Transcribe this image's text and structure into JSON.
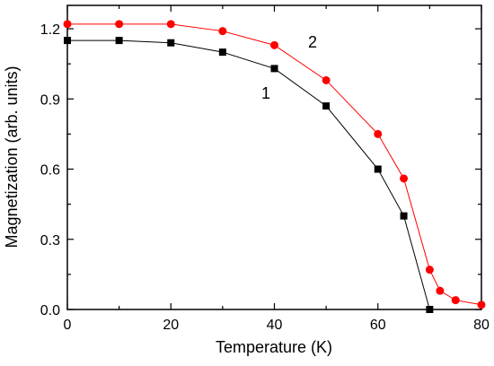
{
  "chart_data": {
    "type": "line",
    "xlabel": "Temperature (K)",
    "ylabel": "Magnetization (arb. units)",
    "xlim": [
      0,
      80
    ],
    "ylim": [
      0,
      1.3
    ],
    "xticks": [
      "0",
      "20",
      "40",
      "60",
      "80"
    ],
    "yticks": [
      "0.0",
      "0.3",
      "0.6",
      "0.9",
      "1.2"
    ],
    "grid": false,
    "series": [
      {
        "name": "1",
        "marker": "square",
        "color": "#000000",
        "points": [
          [
            0,
            1.15
          ],
          [
            10,
            1.15
          ],
          [
            20,
            1.14
          ],
          [
            30,
            1.1
          ],
          [
            40,
            1.03
          ],
          [
            50,
            0.87
          ],
          [
            60,
            0.6
          ],
          [
            65,
            0.4
          ],
          [
            70,
            0.0
          ]
        ]
      },
      {
        "name": "2",
        "marker": "circle",
        "color": "#ff0000",
        "points": [
          [
            0,
            1.22
          ],
          [
            10,
            1.22
          ],
          [
            20,
            1.22
          ],
          [
            30,
            1.19
          ],
          [
            40,
            1.13
          ],
          [
            50,
            0.98
          ],
          [
            60,
            0.75
          ],
          [
            65,
            0.56
          ],
          [
            70,
            0.17
          ],
          [
            72,
            0.08
          ],
          [
            75,
            0.04
          ],
          [
            80,
            0.02
          ]
        ]
      }
    ]
  }
}
